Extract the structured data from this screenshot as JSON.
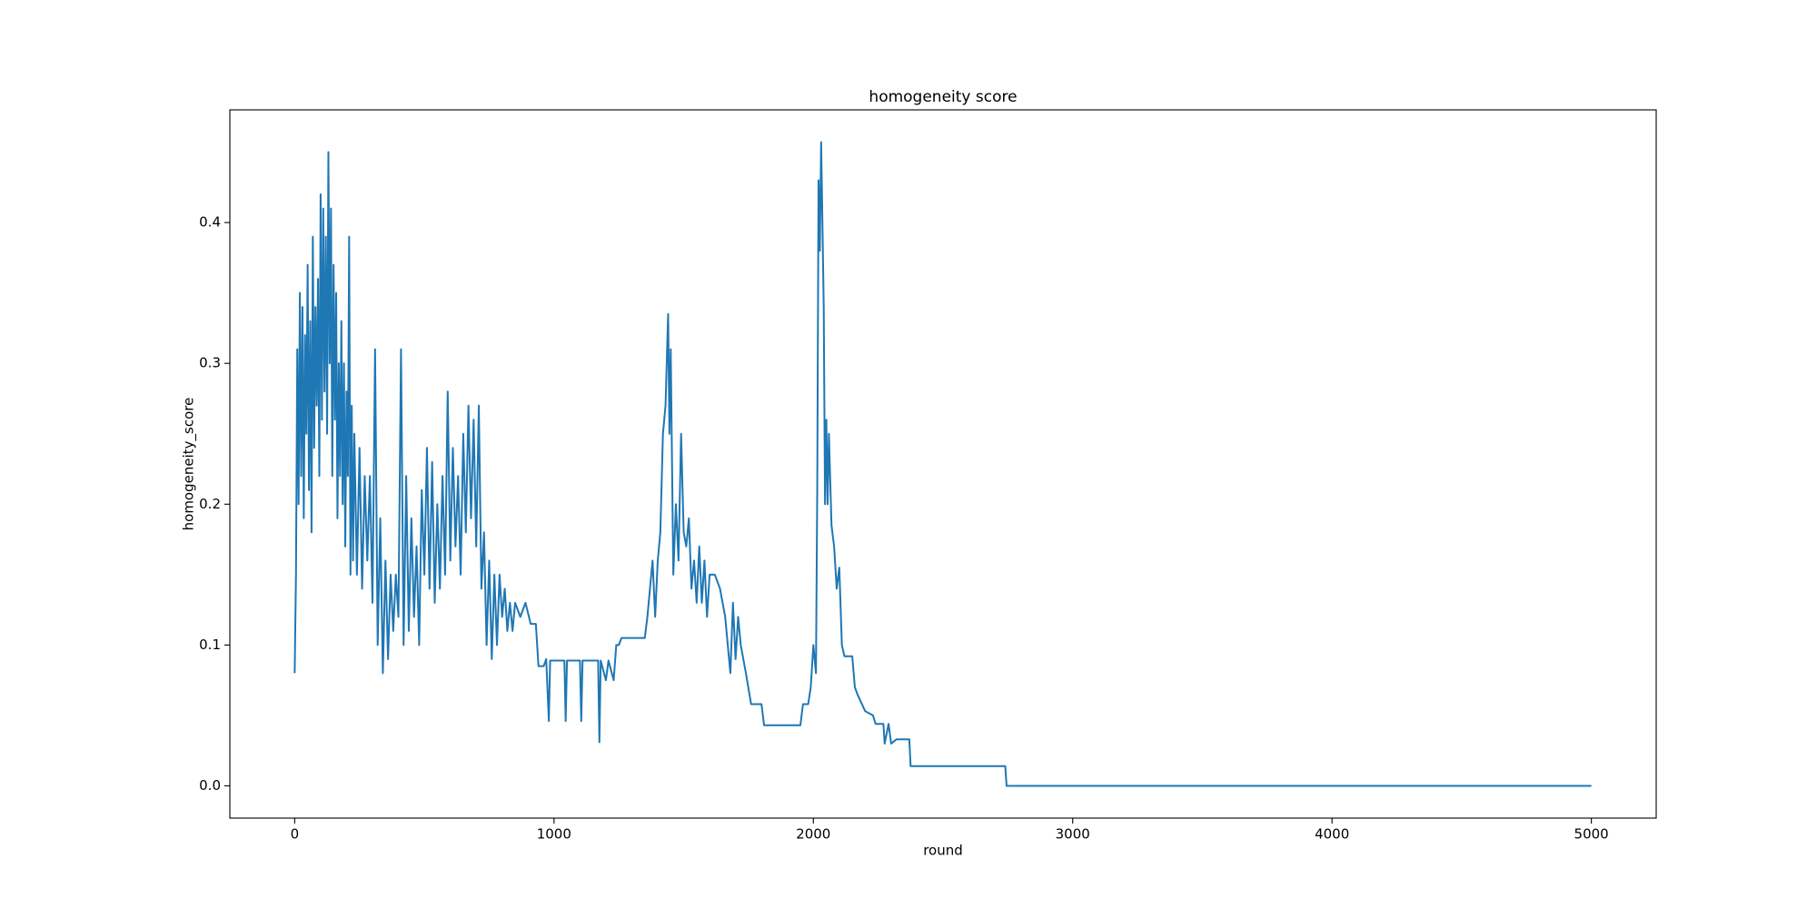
{
  "chart_data": {
    "type": "line",
    "title": "homogeneity score",
    "x_label": "round",
    "y_label": "homogeneity_score",
    "x": [
      0,
      5,
      10,
      15,
      20,
      25,
      30,
      35,
      40,
      45,
      50,
      55,
      60,
      65,
      70,
      75,
      80,
      85,
      90,
      95,
      100,
      105,
      110,
      115,
      120,
      125,
      130,
      135,
      140,
      145,
      150,
      155,
      160,
      165,
      170,
      175,
      180,
      185,
      190,
      195,
      200,
      205,
      210,
      215,
      220,
      225,
      230,
      240,
      250,
      260,
      270,
      280,
      290,
      300,
      310,
      320,
      330,
      340,
      350,
      360,
      370,
      380,
      390,
      400,
      410,
      420,
      430,
      440,
      450,
      460,
      470,
      480,
      490,
      500,
      510,
      520,
      530,
      540,
      550,
      560,
      570,
      580,
      590,
      600,
      610,
      620,
      630,
      640,
      650,
      660,
      670,
      680,
      690,
      700,
      710,
      720,
      730,
      740,
      750,
      760,
      770,
      780,
      790,
      800,
      810,
      820,
      830,
      840,
      850,
      870,
      890,
      910,
      930,
      940,
      960,
      970,
      980,
      985,
      1040,
      1045,
      1050,
      1100,
      1105,
      1110,
      1170,
      1175,
      1180,
      1200,
      1210,
      1230,
      1240,
      1250,
      1260,
      1350,
      1360,
      1380,
      1390,
      1400,
      1410,
      1420,
      1430,
      1440,
      1445,
      1450,
      1460,
      1470,
      1480,
      1490,
      1500,
      1510,
      1520,
      1530,
      1540,
      1550,
      1560,
      1570,
      1580,
      1590,
      1600,
      1620,
      1640,
      1660,
      1680,
      1690,
      1700,
      1710,
      1720,
      1740,
      1760,
      1800,
      1810,
      1950,
      1960,
      1980,
      1990,
      2000,
      2010,
      2015,
      2020,
      2025,
      2030,
      2035,
      2040,
      2045,
      2050,
      2055,
      2060,
      2070,
      2080,
      2090,
      2100,
      2110,
      2120,
      2150,
      2160,
      2170,
      2200,
      2230,
      2240,
      2270,
      2275,
      2290,
      2300,
      2320,
      2370,
      2375,
      2740,
      2745,
      5000
    ],
    "series": [
      {
        "name": "homogeneity_score",
        "color": "#1f77b4",
        "values": [
          0.08,
          0.15,
          0.31,
          0.2,
          0.35,
          0.22,
          0.34,
          0.19,
          0.32,
          0.25,
          0.37,
          0.21,
          0.33,
          0.18,
          0.39,
          0.24,
          0.34,
          0.27,
          0.36,
          0.22,
          0.42,
          0.26,
          0.41,
          0.28,
          0.39,
          0.25,
          0.45,
          0.3,
          0.41,
          0.22,
          0.37,
          0.26,
          0.35,
          0.19,
          0.3,
          0.22,
          0.33,
          0.2,
          0.3,
          0.17,
          0.28,
          0.22,
          0.39,
          0.15,
          0.27,
          0.16,
          0.25,
          0.15,
          0.24,
          0.14,
          0.22,
          0.16,
          0.22,
          0.13,
          0.31,
          0.1,
          0.19,
          0.08,
          0.16,
          0.09,
          0.15,
          0.11,
          0.15,
          0.12,
          0.31,
          0.1,
          0.22,
          0.11,
          0.19,
          0.12,
          0.17,
          0.1,
          0.21,
          0.15,
          0.24,
          0.14,
          0.23,
          0.13,
          0.2,
          0.14,
          0.22,
          0.15,
          0.28,
          0.16,
          0.24,
          0.17,
          0.22,
          0.15,
          0.25,
          0.18,
          0.27,
          0.19,
          0.26,
          0.17,
          0.27,
          0.14,
          0.18,
          0.1,
          0.16,
          0.09,
          0.15,
          0.1,
          0.15,
          0.12,
          0.14,
          0.11,
          0.13,
          0.11,
          0.13,
          0.12,
          0.13,
          0.115,
          0.115,
          0.085,
          0.085,
          0.09,
          0.046,
          0.089,
          0.089,
          0.046,
          0.089,
          0.089,
          0.046,
          0.089,
          0.089,
          0.031,
          0.089,
          0.075,
          0.089,
          0.075,
          0.1,
          0.1,
          0.105,
          0.105,
          0.12,
          0.16,
          0.12,
          0.16,
          0.18,
          0.25,
          0.27,
          0.335,
          0.25,
          0.31,
          0.15,
          0.2,
          0.16,
          0.25,
          0.18,
          0.17,
          0.19,
          0.14,
          0.16,
          0.13,
          0.17,
          0.13,
          0.16,
          0.12,
          0.15,
          0.15,
          0.14,
          0.12,
          0.08,
          0.13,
          0.09,
          0.12,
          0.1,
          0.08,
          0.058,
          0.058,
          0.043,
          0.043,
          0.058,
          0.058,
          0.07,
          0.1,
          0.08,
          0.21,
          0.43,
          0.38,
          0.457,
          0.4,
          0.34,
          0.2,
          0.26,
          0.2,
          0.25,
          0.185,
          0.17,
          0.14,
          0.155,
          0.1,
          0.092,
          0.092,
          0.07,
          0.065,
          0.053,
          0.05,
          0.044,
          0.044,
          0.03,
          0.044,
          0.03,
          0.033,
          0.033,
          0.014,
          0.014,
          0,
          0
        ]
      }
    ],
    "xlim": [
      -250,
      5250
    ],
    "ylim": [
      -0.0229,
      0.48
    ],
    "xticks": [
      0,
      1000,
      2000,
      3000,
      4000,
      5000
    ],
    "yticks": [
      {
        "value": 0,
        "label": "0.0"
      },
      0.1,
      0.2,
      0.3,
      0.4
    ]
  }
}
